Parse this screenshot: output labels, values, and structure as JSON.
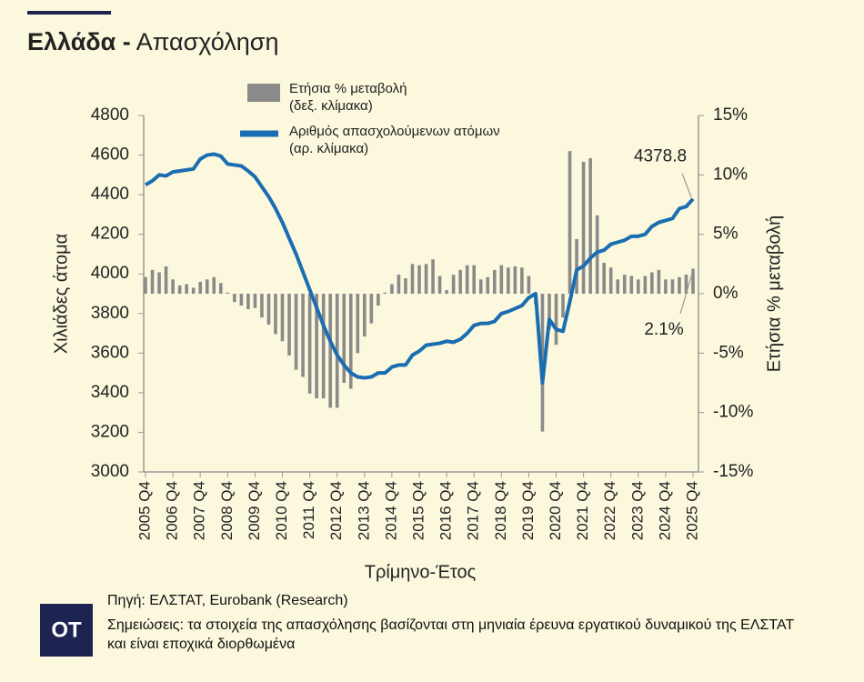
{
  "chart_data": {
    "type": "bar-line",
    "title": "Ελλάδα -",
    "subtitle": "Απασχόληση",
    "ylabel": "Χιλιάδες άτομα",
    "y2label": "Ετήσια % μεταβολή",
    "xlabel": "Τρίμηνο-Έτος",
    "source": "Πηγή: ΕΛΣΤΑΤ, Eurobank (Research)",
    "note": "Σημειώσεις: τα στοιχεία της απασχόλησης βασίζονται στη μηνιαία έρευνα εργατικού δυναμικού της ΕΛΣΤΑΤ και είναι εποχικά διορθωμένα",
    "logo": "OT",
    "categories": [
      "2005 Q4",
      null,
      null,
      null,
      "2006 Q4",
      null,
      null,
      null,
      "2007 Q4",
      null,
      null,
      null,
      "2008 Q4",
      null,
      null,
      null,
      "2009 Q4",
      null,
      null,
      null,
      "2010 Q4",
      null,
      null,
      null,
      "2011 Q4",
      null,
      null,
      null,
      "2012 Q4",
      null,
      null,
      null,
      "2013 Q4",
      null,
      null,
      null,
      "2014 Q4",
      null,
      null,
      null,
      "2015 Q4",
      null,
      null,
      null,
      "2016 Q4",
      null,
      null,
      null,
      "2017 Q4",
      null,
      null,
      null,
      "2018 Q4",
      null,
      null,
      null,
      "2019 Q4",
      null,
      null,
      null,
      "2020 Q4",
      null,
      null,
      null,
      "2021 Q4",
      null,
      null,
      null,
      "2022 Q4",
      null,
      null,
      null,
      "2023 Q4",
      null,
      null,
      null,
      "2024 Q4",
      null,
      null,
      null,
      "2025 Q4"
    ],
    "series": [
      {
        "name": "Ετήσια % μεταβολή\n(δεξ. κλίμακα)",
        "type": "bar",
        "axis": "y2",
        "color": "#8a8a8a",
        "values": [
          1.4,
          2.0,
          1.8,
          2.3,
          1.2,
          0.7,
          0.8,
          0.5,
          1.0,
          1.2,
          1.4,
          0.9,
          0.1,
          -0.7,
          -1.0,
          -1.3,
          -1.2,
          -2.0,
          -2.6,
          -3.4,
          -4.0,
          -5.2,
          -6.4,
          -7.0,
          -8.4,
          -8.8,
          -8.8,
          -9.6,
          -9.6,
          -7.5,
          -8.0,
          -5.0,
          -3.6,
          -2.5,
          -1.0,
          0.1,
          0.8,
          1.6,
          1.3,
          2.5,
          2.4,
          2.5,
          2.9,
          1.5,
          0.3,
          1.6,
          2.0,
          2.4,
          2.4,
          1.2,
          1.4,
          2.0,
          2.4,
          2.2,
          2.3,
          2.2,
          1.5,
          -0.9,
          -11.6,
          -3.0,
          -4.3,
          -2.0,
          12.0,
          4.6,
          11.1,
          11.4,
          6.6,
          2.6,
          2.2,
          1.2,
          1.6,
          1.5,
          1.2,
          1.5,
          1.8,
          2.0,
          1.2,
          1.2,
          1.4,
          1.6,
          2.1
        ],
        "value_labels": [
          null,
          null,
          null,
          null,
          null,
          null,
          null,
          null,
          null,
          null,
          null,
          null,
          null,
          null,
          null,
          null,
          null,
          null,
          null,
          null,
          null,
          null,
          null,
          null,
          null,
          null,
          null,
          null,
          null,
          null,
          null,
          null,
          null,
          null,
          null,
          null,
          null,
          null,
          null,
          null,
          null,
          null,
          null,
          null,
          null,
          null,
          null,
          null,
          null,
          null,
          null,
          null,
          null,
          null,
          null,
          null,
          null,
          null,
          null,
          null,
          null,
          null,
          null,
          null,
          null,
          null,
          null,
          null,
          null,
          null,
          null,
          null,
          null,
          null,
          null,
          null,
          null,
          null,
          null,
          null,
          "2.1%"
        ]
      },
      {
        "name": "Αριθμός απασχολούμενων ατόμων\n(αρ. κλίμακα)",
        "type": "line",
        "axis": "y",
        "color": "#1b6db2",
        "values": [
          4450,
          4470,
          4500,
          4495,
          4515,
          4520,
          4525,
          4530,
          4580,
          4600,
          4605,
          4595,
          4555,
          4550,
          4545,
          4520,
          4490,
          4440,
          4390,
          4330,
          4260,
          4180,
          4100,
          4010,
          3920,
          3830,
          3740,
          3660,
          3590,
          3540,
          3500,
          3480,
          3475,
          3480,
          3500,
          3500,
          3530,
          3540,
          3540,
          3590,
          3610,
          3640,
          3645,
          3650,
          3660,
          3655,
          3670,
          3700,
          3740,
          3750,
          3750,
          3760,
          3800,
          3810,
          3825,
          3840,
          3880,
          3900,
          3450,
          3770,
          3720,
          3710,
          3860,
          4020,
          4040,
          4080,
          4110,
          4120,
          4150,
          4160,
          4170,
          4190,
          4190,
          4200,
          4240,
          4260,
          4270,
          4280,
          4330,
          4340,
          4378.8
        ],
        "value_labels": [
          null,
          null,
          null,
          null,
          null,
          null,
          null,
          null,
          null,
          null,
          null,
          null,
          null,
          null,
          null,
          null,
          null,
          null,
          null,
          null,
          null,
          null,
          null,
          null,
          null,
          null,
          null,
          null,
          null,
          null,
          null,
          null,
          null,
          null,
          null,
          null,
          null,
          null,
          null,
          null,
          null,
          null,
          null,
          null,
          null,
          null,
          null,
          null,
          null,
          null,
          null,
          null,
          null,
          null,
          null,
          null,
          null,
          null,
          null,
          null,
          null,
          null,
          null,
          null,
          null,
          null,
          null,
          null,
          null,
          null,
          null,
          null,
          null,
          null,
          null,
          null,
          null,
          null,
          null,
          null,
          "4378.8"
        ]
      }
    ],
    "ylim": [
      3000,
      4800
    ],
    "yticks": [
      3000,
      3200,
      3400,
      3600,
      3800,
      4000,
      4200,
      4400,
      4600,
      4800
    ],
    "y2lim": [
      -15,
      15
    ],
    "y2ticks": [
      {
        "value": -15,
        "label": "-15%"
      },
      {
        "value": -10,
        "label": "-10%"
      },
      {
        "value": -5,
        "label": "-5%"
      },
      {
        "value": 0,
        "label": "0%"
      },
      {
        "value": 5,
        "label": "5%"
      },
      {
        "value": 10,
        "label": "10%"
      },
      {
        "value": 15,
        "label": "15%"
      }
    ],
    "grid": false
  }
}
